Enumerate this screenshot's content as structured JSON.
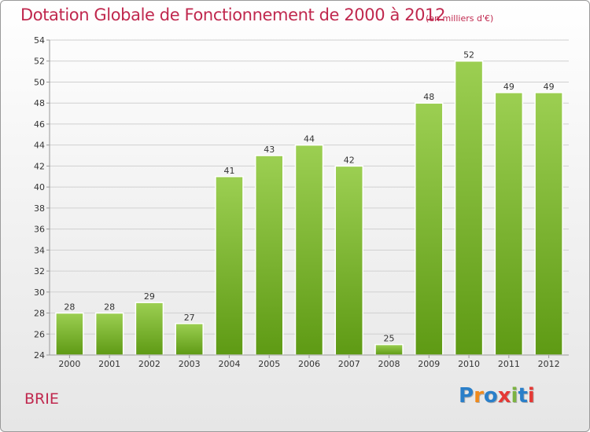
{
  "title": "Dotation Globale de Fonctionnement de 2000 à 2012",
  "unit_note": "(en milliers d'€)",
  "place_name": "BRIE",
  "logo": {
    "text": "Proxiti",
    "letters": [
      "P",
      "r",
      "o",
      "x",
      "i",
      "t",
      "i"
    ],
    "letter_colors": [
      "#2a7fc9",
      "#f08a1c",
      "#2a7fc9",
      "#e53935",
      "#7cb342",
      "#2a7fc9",
      "#e53935"
    ]
  },
  "colors": {
    "title": "#c0284e",
    "bar_top": "#9ccf52",
    "bar_bottom": "#5e9a14",
    "axis": "#999999",
    "grid": "#d0d0d0",
    "tick_text": "#333333"
  },
  "chart_data": {
    "type": "bar",
    "title": "Dotation Globale de Fonctionnement de 2000 à 2012",
    "subtitle": "(en milliers d'€)",
    "xlabel": "",
    "ylabel": "",
    "categories": [
      "2000",
      "2001",
      "2002",
      "2003",
      "2004",
      "2005",
      "2006",
      "2007",
      "2008",
      "2009",
      "2010",
      "2011",
      "2012"
    ],
    "values": [
      28,
      28,
      29,
      27,
      41,
      43,
      44,
      42,
      25,
      48,
      52,
      49,
      49
    ],
    "data_labels": [
      "28",
      "28",
      "29",
      "27",
      "41",
      "43",
      "44",
      "42",
      "25",
      "48",
      "52",
      "49",
      "49"
    ],
    "ylim": [
      24,
      54
    ],
    "yticks": [
      24,
      26,
      28,
      30,
      32,
      34,
      36,
      38,
      40,
      42,
      44,
      46,
      48,
      50,
      52,
      54
    ],
    "grid": true,
    "legend": "none"
  }
}
